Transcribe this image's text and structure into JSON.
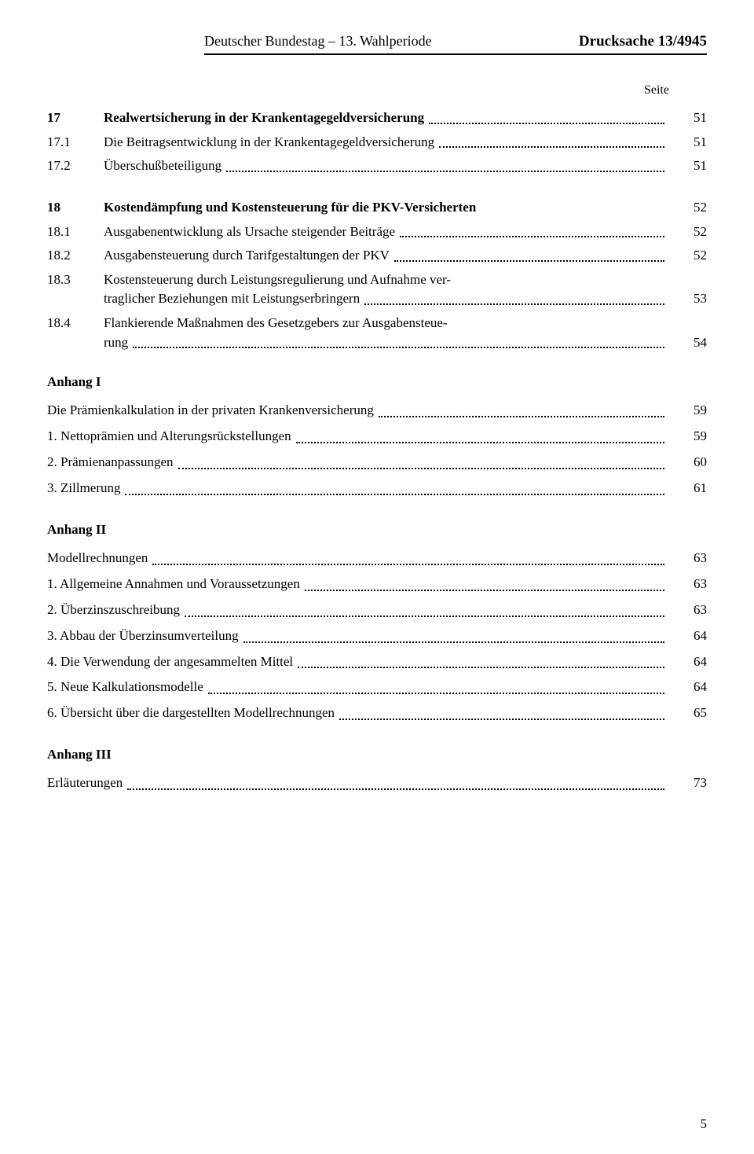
{
  "header": {
    "left": "Deutscher Bundestag – 13. Wahlperiode",
    "right": "Drucksache 13/4945"
  },
  "seite_label": "Seite",
  "section17": {
    "num": "17",
    "title": "Realwertsicherung in der Krankentagegeldversicherung",
    "page": "51",
    "items": [
      {
        "num": "17.1",
        "text": "Die Beitragsentwicklung in der Krankentagegeldversicherung",
        "page": "51"
      },
      {
        "num": "17.2",
        "text": "Überschußbeteiligung",
        "page": "51"
      }
    ]
  },
  "section18": {
    "num": "18",
    "title": "Kostendämpfung und Kostensteuerung für die PKV-Versicherten",
    "page": "52",
    "items": [
      {
        "num": "18.1",
        "text": "Ausgabenentwicklung als Ursache steigender Beiträge",
        "page": "52"
      },
      {
        "num": "18.2",
        "text": "Ausgabensteuerung durch Tarifgestaltungen der PKV",
        "page": "52"
      },
      {
        "num": "18.3",
        "text_l1": "Kostensteuerung durch Leistungsregulierung und Aufnahme ver-",
        "text_l2": "traglicher Beziehungen mit Leistungserbringern",
        "page": "53"
      },
      {
        "num": "18.4",
        "text_l1": "Flankierende Maßnahmen des Gesetzgebers zur Ausgabensteue-",
        "text_l2": "rung",
        "page": "54"
      }
    ]
  },
  "anhang1": {
    "title": "Anhang I",
    "intro": {
      "text": "Die Prämienkalkulation in der privaten Krankenversicherung",
      "page": "59"
    },
    "items": [
      {
        "text": "1. Nettoprämien und Alterungsrückstellungen",
        "page": "59"
      },
      {
        "text": "2. Prämienanpassungen",
        "page": "60"
      },
      {
        "text": "3. Zillmerung",
        "page": "61"
      }
    ]
  },
  "anhang2": {
    "title": "Anhang II",
    "intro": {
      "text": "Modellrechnungen",
      "page": "63"
    },
    "items": [
      {
        "text": "1. Allgemeine Annahmen und Voraussetzungen",
        "page": "63"
      },
      {
        "text": "2. Überzinszuschreibung",
        "page": "63"
      },
      {
        "text": "3. Abbau der Überzinsumverteilung",
        "page": "64"
      },
      {
        "text": "4. Die Verwendung der angesammelten Mittel",
        "page": "64"
      },
      {
        "text": "5. Neue Kalkulationsmodelle",
        "page": "64"
      },
      {
        "text": "6. Übersicht über die dargestellten Modellrechnungen",
        "page": "65"
      }
    ]
  },
  "anhang3": {
    "title": "Anhang III",
    "items": [
      {
        "text": "Erläuterungen",
        "page": "73"
      }
    ]
  },
  "page_number": "5"
}
